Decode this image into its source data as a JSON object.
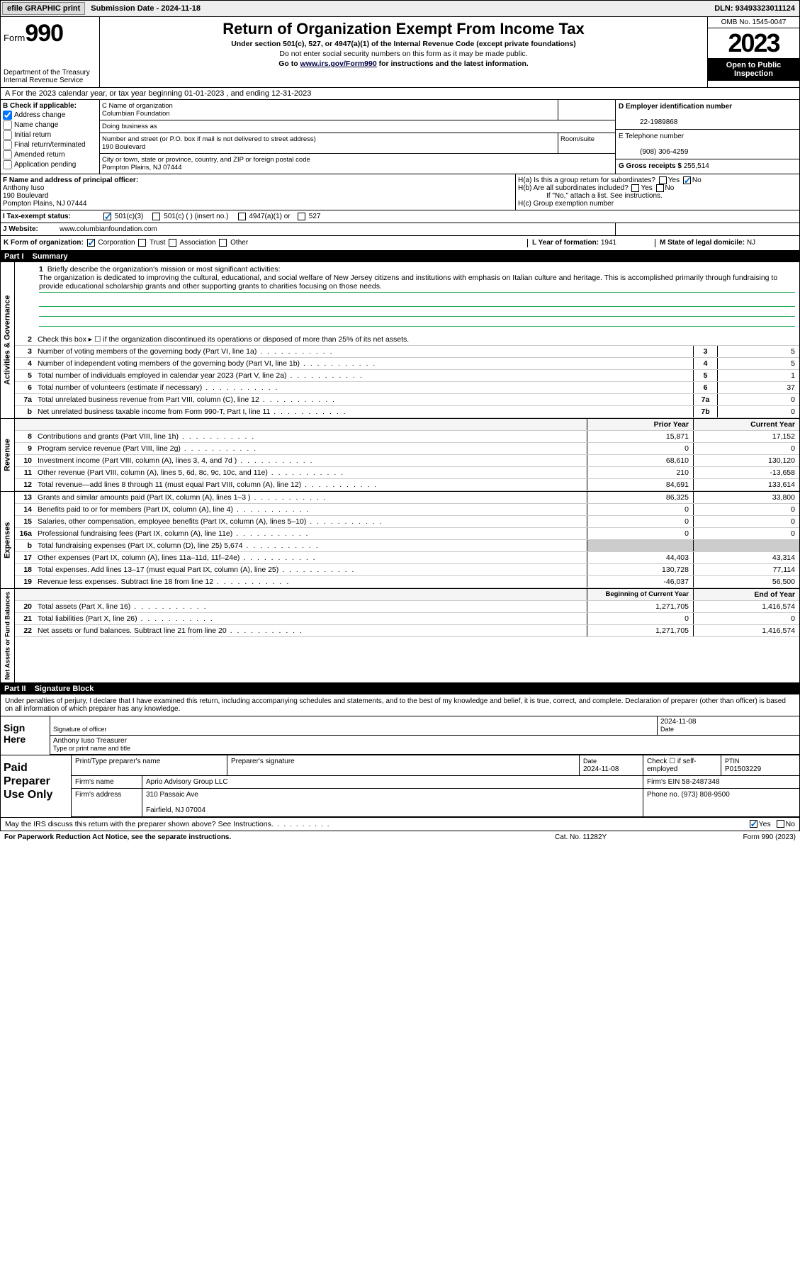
{
  "topbar": {
    "efile": "efile GRAPHIC print",
    "subdate_lbl": "Submission Date - ",
    "subdate": "2024-11-18",
    "dln_lbl": "DLN: ",
    "dln": "93493323011124"
  },
  "hdr": {
    "form_lbl": "Form",
    "form_no": "990",
    "dept": "Department of the Treasury",
    "irs": "Internal Revenue Service",
    "title": "Return of Organization Exempt From Income Tax",
    "sub": "Under section 501(c), 527, or 4947(a)(1) of the Internal Revenue Code (except private foundations)",
    "sub2": "Do not enter social security numbers on this form as it may be made public.",
    "sub3_pre": "Go to ",
    "sub3_link": "www.irs.gov/Form990",
    "sub3_post": " for instructions and the latest information.",
    "omb": "OMB No. 1545-0047",
    "year": "2023",
    "open": "Open to Public Inspection"
  },
  "linebar": "A   For the 2023 calendar year, or tax year beginning 01-01-2023     , and ending 12-31-2023",
  "B": {
    "lbl": "B Check if applicable:",
    "items": [
      "Address change",
      "Name change",
      "Initial return",
      "Final return/terminated",
      "Amended return",
      "Application pending"
    ],
    "checked": [
      true,
      false,
      false,
      false,
      false,
      false
    ]
  },
  "C": {
    "name_lbl": "C Name of organization",
    "name": "Columbian Foundation",
    "dba_lbl": "Doing business as",
    "dba": "",
    "addr_lbl": "Number and street (or P.O. box if mail is not delivered to street address)",
    "addr": "190 Boulevard",
    "room_lbl": "Room/suite",
    "city_lbl": "City or town, state or province, country, and ZIP or foreign postal code",
    "city": "Pompton Plains, NJ  07444"
  },
  "D": {
    "ein_lbl": "D Employer identification number",
    "ein": "22-1989868",
    "tel_lbl": "E Telephone number",
    "tel": "(908) 306-4259",
    "gross_lbl": "G Gross receipts $ ",
    "gross": "255,514"
  },
  "F": {
    "lbl": "F  Name and address of principal officer:",
    "name": "Anthony Iuso",
    "addr": "190 Boulevard",
    "city": "Pompton Plains, NJ  07444"
  },
  "H": {
    "a": "H(a)  Is this a group return for subordinates?",
    "b": "H(b)  Are all subordinates included?",
    "ifno": "If \"No,\" attach a list. See instructions.",
    "c": "H(c)  Group exemption number",
    "yes": "Yes",
    "no": "No"
  },
  "I": {
    "lbl": "I    Tax-exempt status:",
    "o1": "501(c)(3)",
    "o2": "501(c) (  ) (insert no.)",
    "o3": "4947(a)(1) or",
    "o4": "527"
  },
  "J": {
    "lbl": "J    Website:",
    "val": "www.columbianfoundation.com"
  },
  "K": {
    "lbl": "K Form of organization:",
    "o1": "Corporation",
    "o2": "Trust",
    "o3": "Association",
    "o4": "Other"
  },
  "L": {
    "lbl": "L Year of formation: ",
    "val": "1941"
  },
  "M": {
    "lbl": "M State of legal domicile: ",
    "val": "NJ"
  },
  "part1": {
    "hdr": "Part I",
    "title": "Summary"
  },
  "mission": {
    "num": "1",
    "lbl": "Briefly describe the organization's mission or most significant activities:",
    "txt": "The organization is dedicated to improving the cultural, educational, and social welfare of New Jersey citizens and institutions with emphasis on Italian culture and heritage. This is accomplished primarily through fundraising to provide educational scholarship grants and other supporting grants to charities focusing on those needs."
  },
  "gov_rows": [
    {
      "n": "2",
      "d": "Check this box ▸ ☐  if the organization discontinued its operations or disposed of more than 25% of its net assets."
    },
    {
      "n": "3",
      "d": "Number of voting members of the governing body (Part VI, line 1a)",
      "cn": "3",
      "cv": "5"
    },
    {
      "n": "4",
      "d": "Number of independent voting members of the governing body (Part VI, line 1b)",
      "cn": "4",
      "cv": "5"
    },
    {
      "n": "5",
      "d": "Total number of individuals employed in calendar year 2023 (Part V, line 2a)",
      "cn": "5",
      "cv": "1"
    },
    {
      "n": "6",
      "d": "Total number of volunteers (estimate if necessary)",
      "cn": "6",
      "cv": "37"
    },
    {
      "n": "7a",
      "d": "Total unrelated business revenue from Part VIII, column (C), line 12",
      "cn": "7a",
      "cv": "0"
    },
    {
      "n": "b",
      "d": "Net unrelated business taxable income from Form 990-T, Part I, line 11",
      "cn": "7b",
      "cv": "0"
    }
  ],
  "rev_hdr": {
    "c1": "Prior Year",
    "c2": "Current Year"
  },
  "rev_rows": [
    {
      "n": "8",
      "d": "Contributions and grants (Part VIII, line 1h)",
      "c1": "15,871",
      "c2": "17,152"
    },
    {
      "n": "9",
      "d": "Program service revenue (Part VIII, line 2g)",
      "c1": "0",
      "c2": "0"
    },
    {
      "n": "10",
      "d": "Investment income (Part VIII, column (A), lines 3, 4, and 7d )",
      "c1": "68,610",
      "c2": "130,120"
    },
    {
      "n": "11",
      "d": "Other revenue (Part VIII, column (A), lines 5, 6d, 8c, 9c, 10c, and 11e)",
      "c1": "210",
      "c2": "-13,658"
    },
    {
      "n": "12",
      "d": "Total revenue—add lines 8 through 11 (must equal Part VIII, column (A), line 12)",
      "c1": "84,691",
      "c2": "133,614"
    }
  ],
  "exp_rows": [
    {
      "n": "13",
      "d": "Grants and similar amounts paid (Part IX, column (A), lines 1–3 )",
      "c1": "86,325",
      "c2": "33,800"
    },
    {
      "n": "14",
      "d": "Benefits paid to or for members (Part IX, column (A), line 4)",
      "c1": "0",
      "c2": "0"
    },
    {
      "n": "15",
      "d": "Salaries, other compensation, employee benefits (Part IX, column (A), lines 5–10)",
      "c1": "0",
      "c2": "0"
    },
    {
      "n": "16a",
      "d": "Professional fundraising fees (Part IX, column (A), line 11e)",
      "c1": "0",
      "c2": "0"
    },
    {
      "n": "b",
      "d": "Total fundraising expenses (Part IX, column (D), line 25) 5,674",
      "shade": true
    },
    {
      "n": "17",
      "d": "Other expenses (Part IX, column (A), lines 11a–11d, 11f–24e)",
      "c1": "44,403",
      "c2": "43,314"
    },
    {
      "n": "18",
      "d": "Total expenses. Add lines 13–17 (must equal Part IX, column (A), line 25)",
      "c1": "130,728",
      "c2": "77,114"
    },
    {
      "n": "19",
      "d": "Revenue less expenses. Subtract line 18 from line 12",
      "c1": "-46,037",
      "c2": "56,500"
    }
  ],
  "na_hdr": {
    "c1": "Beginning of Current Year",
    "c2": "End of Year"
  },
  "na_rows": [
    {
      "n": "20",
      "d": "Total assets (Part X, line 16)",
      "c1": "1,271,705",
      "c2": "1,416,574"
    },
    {
      "n": "21",
      "d": "Total liabilities (Part X, line 26)",
      "c1": "0",
      "c2": "0"
    },
    {
      "n": "22",
      "d": "Net assets or fund balances. Subtract line 21 from line 20",
      "c1": "1,271,705",
      "c2": "1,416,574"
    }
  ],
  "vlabels": {
    "gov": "Activities & Governance",
    "rev": "Revenue",
    "exp": "Expenses",
    "na": "Net Assets or\nFund Balances"
  },
  "part2": {
    "hdr": "Part II",
    "title": "Signature Block"
  },
  "decl": "Under penalties of perjury, I declare that I have examined this return, including accompanying schedules and statements, and to the best of my knowledge and belief, it is true, correct, and complete. Declaration of preparer (other than officer) is based on all information of which preparer has any knowledge.",
  "sign": {
    "side": "Sign Here",
    "sig_lbl": "Signature of officer",
    "date_lbl": "Date",
    "date": "2024-11-08",
    "name": "Anthony Iuso  Treasurer",
    "name_lbl": "Type or print name and title"
  },
  "prep": {
    "side": "Paid Preparer Use Only",
    "h1": "Print/Type preparer's name",
    "h2": "Preparer's signature",
    "h3": "Date",
    "h3v": "2024-11-08",
    "h4": "Check ☐ if self-employed",
    "h5": "PTIN",
    "h5v": "P01503229",
    "firm_lbl": "Firm's name",
    "firm": "Aprio Advisory Group LLC",
    "fein_lbl": "Firm's EIN",
    "fein": "58-2487348",
    "faddr_lbl": "Firm's address",
    "faddr": "310 Passaic Ave",
    "fcity": "Fairfield, NJ  07004",
    "phone_lbl": "Phone no.",
    "phone": "(973) 808-9500"
  },
  "discuss": {
    "q": "May the IRS discuss this return with the preparer shown above? See Instructions.",
    "yes": "Yes",
    "no": "No"
  },
  "foot": {
    "l": "For Paperwork Reduction Act Notice, see the separate instructions.",
    "m": "Cat. No. 11282Y",
    "r": "Form 990 (2023)"
  }
}
